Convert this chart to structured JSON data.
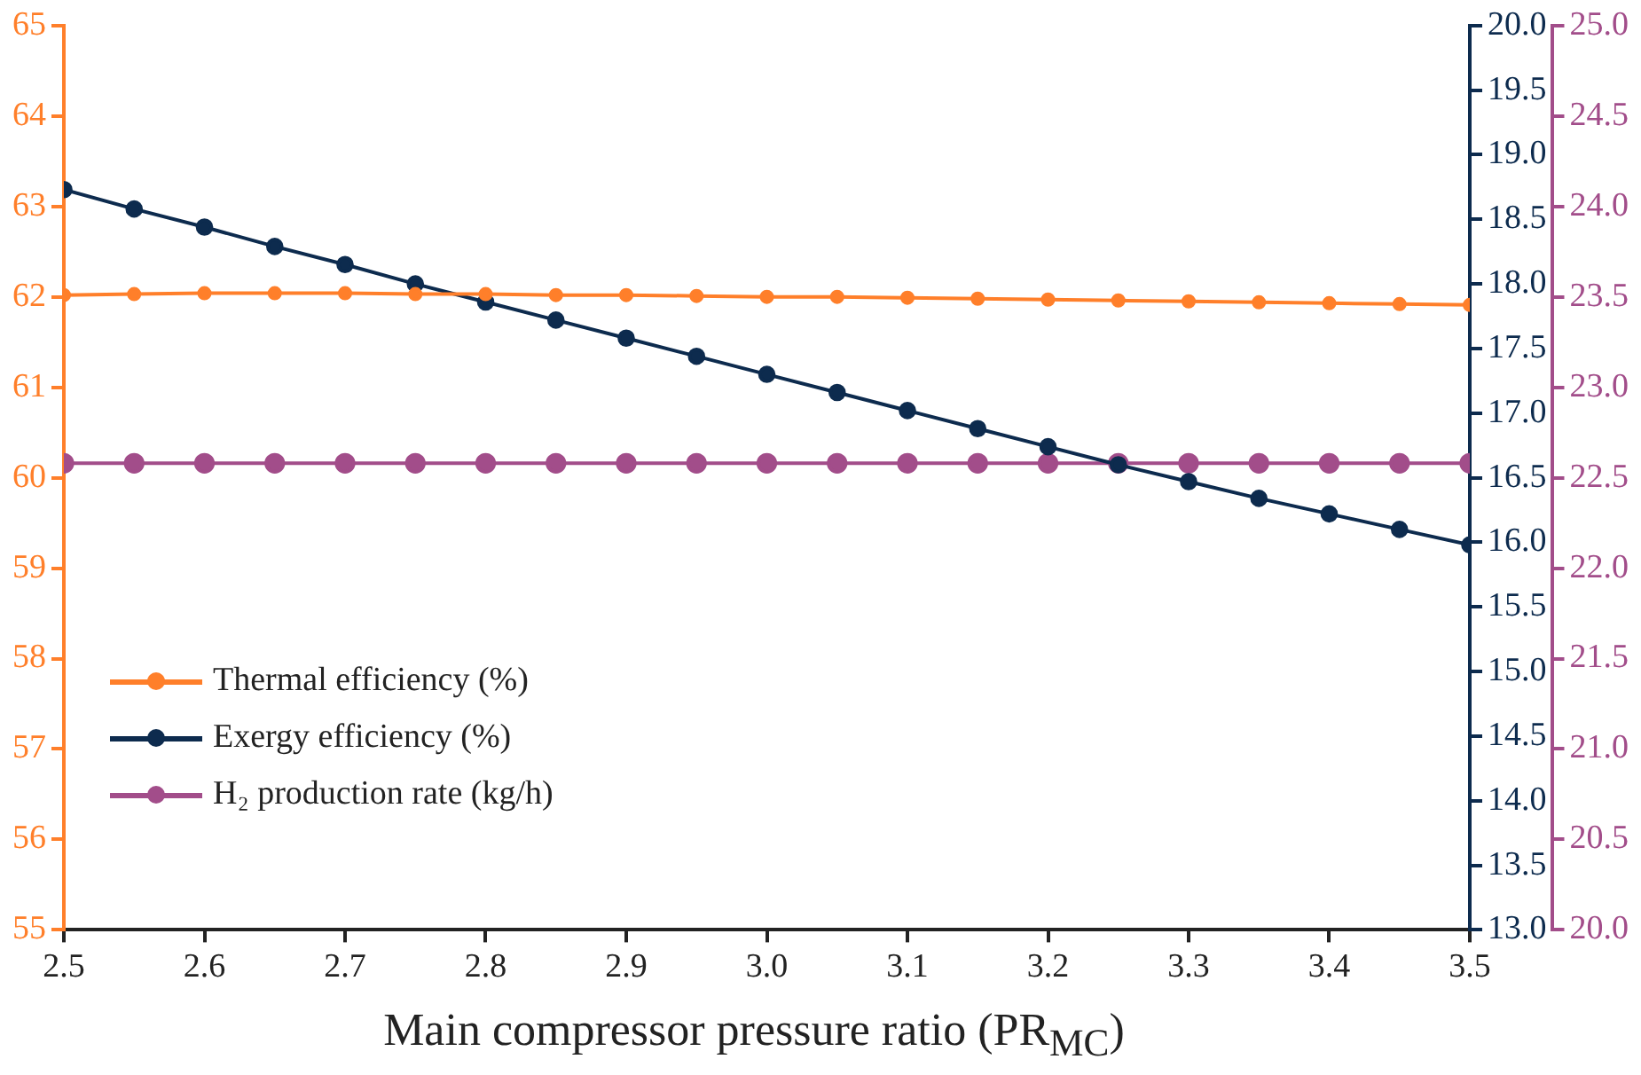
{
  "chart_data": {
    "type": "line",
    "xlabel": "Main compressor pressure ratio (PR$_{MC}$)",
    "x": [
      2.5,
      2.55,
      2.6,
      2.65,
      2.7,
      2.75,
      2.8,
      2.85,
      2.9,
      2.95,
      3.0,
      3.05,
      3.1,
      3.15,
      3.2,
      3.25,
      3.3,
      3.35,
      3.4,
      3.45,
      3.5
    ],
    "series": [
      {
        "name": "Thermal efficiency (%)",
        "color": "#ff7f2a",
        "values": [
          62.02,
          62.03,
          62.04,
          62.04,
          62.04,
          62.03,
          62.03,
          62.02,
          62.02,
          62.01,
          62.0,
          62.0,
          61.99,
          61.98,
          61.97,
          61.96,
          61.95,
          61.94,
          61.93,
          61.92,
          61.91
        ]
      },
      {
        "name": "Exergy efficiency (%)",
        "color": "#0d2b4e",
        "axis": "y2",
        "values": [
          18.73,
          18.58,
          18.44,
          18.29,
          18.15,
          18.0,
          17.86,
          17.72,
          17.58,
          17.44,
          17.3,
          17.16,
          17.02,
          16.88,
          16.74,
          16.6,
          16.47,
          16.34,
          16.22,
          16.1,
          15.98
        ]
      },
      {
        "name": "H₂ production rate (kg/h)",
        "color": "#a24d8a",
        "axis": "y3",
        "values": [
          22.58,
          22.58,
          22.58,
          22.58,
          22.58,
          22.58,
          22.58,
          22.58,
          22.58,
          22.58,
          22.58,
          22.58,
          22.58,
          22.58,
          22.58,
          22.58,
          22.58,
          22.58,
          22.58,
          22.58,
          22.58
        ]
      }
    ],
    "xlim": [
      2.5,
      3.5
    ],
    "xticks": [
      {
        "value": 2.5,
        "label": "2.5"
      },
      {
        "value": 2.6,
        "label": "2.6"
      },
      {
        "value": 2.7,
        "label": "2.7"
      },
      {
        "value": 2.8,
        "label": "2.8"
      },
      {
        "value": 2.9,
        "label": "2.9"
      },
      {
        "value": 3.0,
        "label": "3.0"
      },
      {
        "value": 3.1,
        "label": "3.1"
      },
      {
        "value": 3.2,
        "label": "3.2"
      },
      {
        "value": 3.3,
        "label": "3.3"
      },
      {
        "value": 3.4,
        "label": "3.4"
      },
      {
        "value": 3.5,
        "label": "3.5"
      }
    ],
    "ylim": [
      55,
      65
    ],
    "yticks": [
      55,
      56,
      57,
      58,
      59,
      60,
      61,
      62,
      63,
      64,
      65
    ],
    "y2lim": [
      13,
      20
    ],
    "y2ticks": [
      {
        "value": 13,
        "label": "13.0"
      },
      {
        "value": 13.5,
        "label": "13.5"
      },
      {
        "value": 14,
        "label": "14.0"
      },
      {
        "value": 14.5,
        "label": "14.5"
      },
      {
        "value": 15,
        "label": "15.0"
      },
      {
        "value": 15.5,
        "label": "15.5"
      },
      {
        "value": 16,
        "label": "16.0"
      },
      {
        "value": 16.5,
        "label": "16.5"
      },
      {
        "value": 17,
        "label": "17.0"
      },
      {
        "value": 17.5,
        "label": "17.5"
      },
      {
        "value": 18,
        "label": "18.0"
      },
      {
        "value": 18.5,
        "label": "18.5"
      },
      {
        "value": 19,
        "label": "19.0"
      },
      {
        "value": 19.5,
        "label": "19.5"
      },
      {
        "value": 20,
        "label": "20.0"
      }
    ],
    "y3lim": [
      20,
      25
    ],
    "y3ticks": [
      {
        "value": 20,
        "label": "20.0"
      },
      {
        "value": 20.5,
        "label": "20.5"
      },
      {
        "value": 21,
        "label": "21.0"
      },
      {
        "value": 21.5,
        "label": "21.5"
      },
      {
        "value": 22,
        "label": "22.0"
      },
      {
        "value": 22.5,
        "label": "22.5"
      },
      {
        "value": 23,
        "label": "23.0"
      },
      {
        "value": 23.5,
        "label": "23.5"
      },
      {
        "value": 24,
        "label": "24.0"
      },
      {
        "value": 24.5,
        "label": "24.5"
      },
      {
        "value": 25,
        "label": "25.0"
      }
    ],
    "grid": false,
    "legend": "bottom left",
    "marker": "circle",
    "line_style": "solid"
  }
}
